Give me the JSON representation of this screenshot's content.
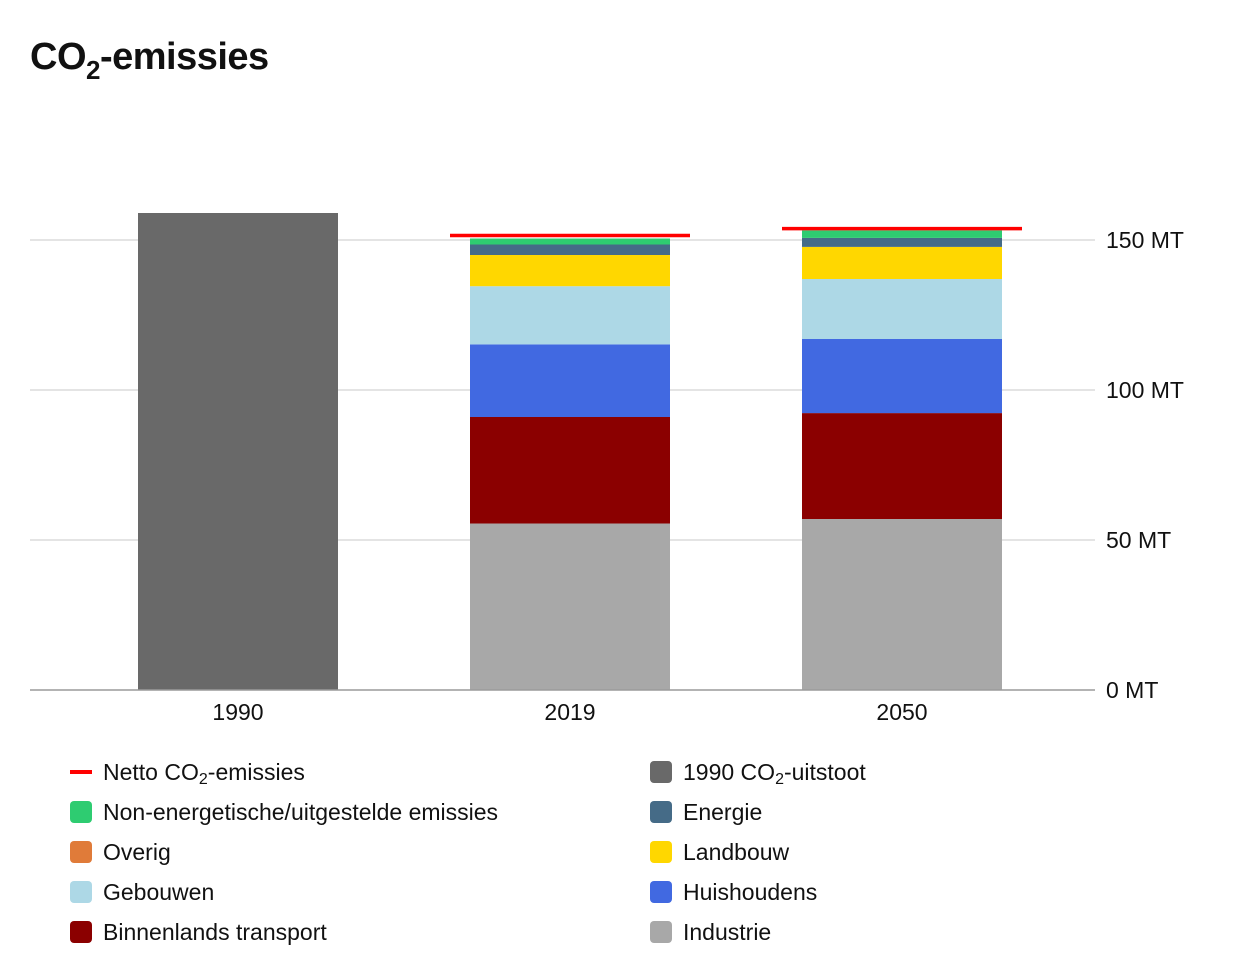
{
  "title": {
    "prefix": "CO",
    "sub": "2",
    "suffix": "-emissies"
  },
  "chart_data": {
    "type": "bar",
    "stacked": true,
    "categories": [
      "1990",
      "2019",
      "2050"
    ],
    "y_axis": {
      "position": "right",
      "ylim": [
        0,
        160
      ],
      "ticks": [
        0,
        50,
        100,
        150
      ],
      "tick_labels": [
        "0 MT",
        "50 MT",
        "100 MT",
        "150 MT"
      ],
      "grid": true
    },
    "series": [
      {
        "name": "1990 CO₂-uitstoot",
        "color": "#696969",
        "values": [
          159,
          0,
          0
        ]
      },
      {
        "name": "Industrie",
        "color": "#a8a8a8",
        "values": [
          0,
          55.5,
          57
        ]
      },
      {
        "name": "Binnenlands transport",
        "color": "#8b0000",
        "values": [
          0,
          35.5,
          35.3
        ]
      },
      {
        "name": "Huishoudens",
        "color": "#4169e1",
        "values": [
          0,
          24.2,
          24.7
        ]
      },
      {
        "name": "Gebouwen",
        "color": "#add8e6",
        "values": [
          0,
          19.4,
          20
        ]
      },
      {
        "name": "Landbouw",
        "color": "#ffd700",
        "values": [
          0,
          10.4,
          10.7
        ]
      },
      {
        "name": "Overig",
        "color": "#e07b39",
        "values": [
          0,
          0,
          0
        ]
      },
      {
        "name": "Energie",
        "color": "#456b87",
        "values": [
          0,
          3.5,
          3
        ]
      },
      {
        "name": "Non-energetische/uitgestelde emissies",
        "color": "#2ecc71",
        "values": [
          0,
          2,
          2.5
        ]
      }
    ],
    "net_line": {
      "name": "Netto CO₂-emissies",
      "color": "#ff0000",
      "values": [
        null,
        151.5,
        153.8
      ]
    }
  },
  "legend": {
    "left": [
      {
        "label_pre": "Netto CO",
        "label_sub": "2",
        "label_post": "-emissies",
        "color": "#ff0000",
        "kind": "line",
        "icon": "red-line-icon"
      },
      {
        "label_pre": "Non-energetische/uitgestelde emissies",
        "label_sub": "",
        "label_post": "",
        "color": "#2ecc71",
        "kind": "box",
        "icon": "green-swatch-icon"
      },
      {
        "label_pre": "Overig",
        "label_sub": "",
        "label_post": "",
        "color": "#e07b39",
        "kind": "box",
        "icon": "orange-swatch-icon"
      },
      {
        "label_pre": "Gebouwen",
        "label_sub": "",
        "label_post": "",
        "color": "#add8e6",
        "kind": "box",
        "icon": "lightblue-swatch-icon"
      },
      {
        "label_pre": "Binnenlands transport",
        "label_sub": "",
        "label_post": "",
        "color": "#8b0000",
        "kind": "box",
        "icon": "darkred-swatch-icon"
      }
    ],
    "right": [
      {
        "label_pre": "1990 CO",
        "label_sub": "2",
        "label_post": "-uitstoot",
        "color": "#696969",
        "kind": "box",
        "icon": "darkgray-swatch-icon"
      },
      {
        "label_pre": "Energie",
        "label_sub": "",
        "label_post": "",
        "color": "#456b87",
        "kind": "box",
        "icon": "steelblue-swatch-icon"
      },
      {
        "label_pre": "Landbouw",
        "label_sub": "",
        "label_post": "",
        "color": "#ffd700",
        "kind": "box",
        "icon": "yellow-swatch-icon"
      },
      {
        "label_pre": "Huishoudens",
        "label_sub": "",
        "label_post": "",
        "color": "#4169e1",
        "kind": "box",
        "icon": "blue-swatch-icon"
      },
      {
        "label_pre": "Industrie",
        "label_sub": "",
        "label_post": "",
        "color": "#a8a8a8",
        "kind": "box",
        "icon": "gray-swatch-icon"
      }
    ]
  }
}
